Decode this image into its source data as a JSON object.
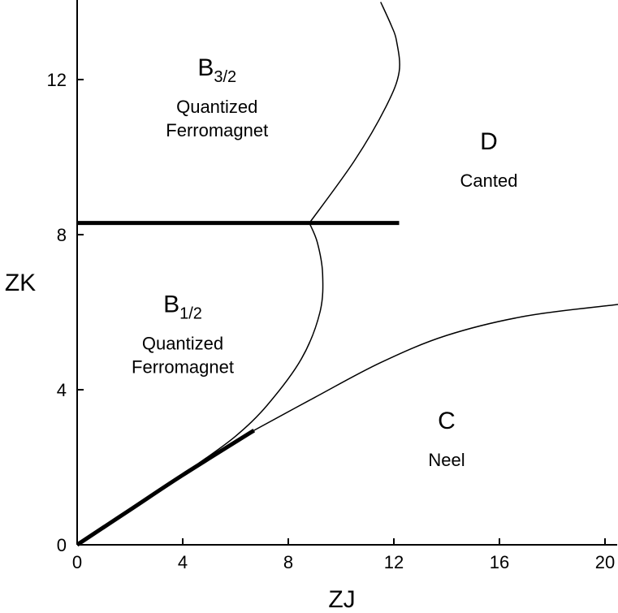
{
  "chart_data": {
    "type": "line",
    "xlabel": "ZJ",
    "ylabel": "ZK",
    "xlim": [
      0,
      20.5
    ],
    "ylim": [
      0,
      14
    ],
    "x_ticks": [
      0,
      4,
      8,
      12,
      16,
      20
    ],
    "y_ticks": [
      0,
      4,
      8,
      12
    ],
    "grid": false,
    "series": [
      {
        "id": "horizontal-first-order-boundary",
        "style": "thick",
        "points": [
          [
            0,
            8.3
          ],
          [
            12.2,
            8.3
          ]
        ]
      },
      {
        "id": "diagonal-first-order-boundary",
        "style": "thick",
        "points": [
          [
            0,
            0
          ],
          [
            2,
            0.9
          ],
          [
            4,
            1.8
          ],
          [
            6.7,
            2.95
          ]
        ]
      },
      {
        "id": "upper-phase-boundary",
        "style": "thin",
        "points": [
          [
            8.8,
            8.3
          ],
          [
            10.5,
            9.9
          ],
          [
            11.7,
            11.3
          ],
          [
            12.2,
            12.2
          ],
          [
            12.1,
            13.0
          ],
          [
            11.9,
            13.4
          ],
          [
            11.5,
            14.0
          ]
        ]
      },
      {
        "id": "middle-phase-boundary",
        "style": "thin",
        "points": [
          [
            8.8,
            8.3
          ],
          [
            9.1,
            7.8
          ],
          [
            9.3,
            7.0
          ],
          [
            9.2,
            6.0
          ],
          [
            8.5,
            4.8
          ],
          [
            7.2,
            3.6
          ],
          [
            6.0,
            2.8
          ],
          [
            4.6,
            2.1
          ]
        ]
      },
      {
        "id": "lower-phase-boundary",
        "style": "thin",
        "points": [
          [
            6.7,
            2.95
          ],
          [
            9.0,
            3.8
          ],
          [
            11.5,
            4.7
          ],
          [
            14.0,
            5.4
          ],
          [
            17.0,
            5.9
          ],
          [
            20.5,
            6.2
          ]
        ]
      }
    ],
    "annotations": [
      {
        "id": "b32",
        "letter": "B",
        "subscript": "3/2",
        "lines": [
          "Quantized",
          "Ferromagnet"
        ],
        "x": 5.3,
        "y": 12.1
      },
      {
        "id": "d",
        "letter": "D",
        "subscript": "",
        "lines": [
          "Canted"
        ],
        "x": 15.6,
        "y": 10.2
      },
      {
        "id": "b12",
        "letter": "B",
        "subscript": "1/2",
        "lines": [
          "Quantized",
          "Ferromagnet"
        ],
        "x": 4.0,
        "y": 6.0
      },
      {
        "id": "c",
        "letter": "C",
        "subscript": "",
        "lines": [
          "Neel"
        ],
        "x": 14.0,
        "y": 3.0
      }
    ]
  }
}
